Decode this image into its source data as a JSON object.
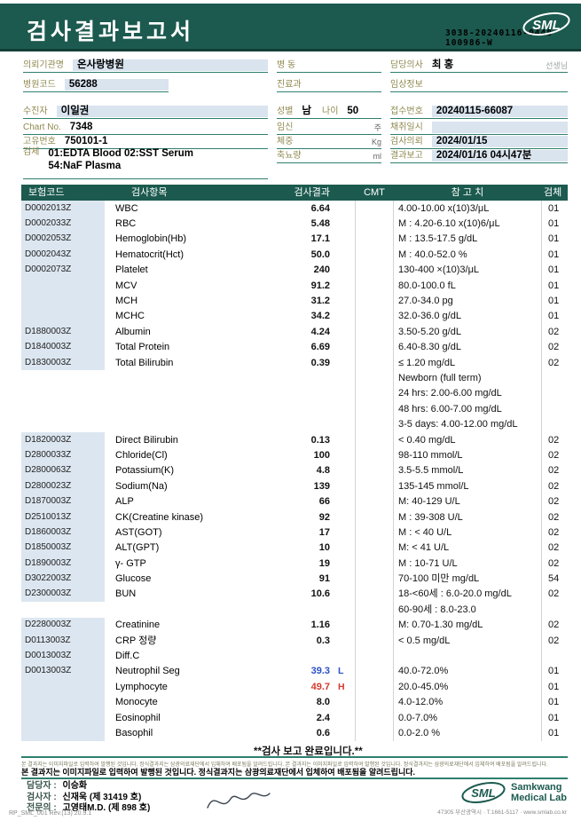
{
  "colors": {
    "teal_banner": "#1c5a4f",
    "teal_line": "#2f7f6d",
    "label_olive": "#8f8950",
    "value_bg": "#d9e4ef",
    "flag_low": "#2b50c8",
    "flag_high": "#d4392e"
  },
  "header": {
    "title": "검사결과보고서",
    "logo_text": "SML",
    "accession_line1": "3038-20240116-0448",
    "accession_line2": "100986-W"
  },
  "info": {
    "requesting_org": {
      "label": "의뢰기관명",
      "value": "온사랑병원"
    },
    "hospital_code": {
      "label": "병원코드",
      "value": "56288"
    },
    "ward": {
      "label": "병 동",
      "value": ""
    },
    "department": {
      "label": "진료과",
      "value": ""
    },
    "doctor": {
      "label": "담당의사",
      "value": "최 홍",
      "suffix": "선생님"
    },
    "clinical_info": {
      "label": "임상정보",
      "value": ""
    },
    "patient": {
      "label": "수진자",
      "value": "이일권"
    },
    "chart_no": {
      "label": "Chart No.",
      "value": "7348"
    },
    "unique_no": {
      "label": "고유번호",
      "value": "750101-1"
    },
    "specimen": {
      "label": "검체",
      "value": "01:EDTA Blood 02:SST Serum",
      "value2": "54:NaF Plasma"
    },
    "sex": {
      "label": "성별",
      "value": "남"
    },
    "age": {
      "label": "나이",
      "value": "50"
    },
    "pregnancy": {
      "label": "임신",
      "unit": "주"
    },
    "weight": {
      "label": "체중",
      "unit": "Kg"
    },
    "urine": {
      "label": "축뇨량",
      "unit": "ml"
    },
    "receipt_no": {
      "label": "접수번호",
      "value": "20240115-66087"
    },
    "collected": {
      "label": "채취일시",
      "value": ""
    },
    "requested": {
      "label": "검사의뢰",
      "value": "2024/01/15"
    },
    "reported": {
      "label": "결과보고",
      "value": "2024/01/16 04시47분"
    }
  },
  "table": {
    "headers": {
      "code": "보험코드",
      "item": "검사항목",
      "result": "검사결과",
      "cmt": "CMT",
      "ref": "참 고 치",
      "spec": "검체"
    },
    "rows": [
      {
        "code": "D0002013Z",
        "item": "WBC",
        "result": "6.64",
        "flag": "",
        "ref": "4.00-10.00 x(10)3/μL",
        "spec": "01"
      },
      {
        "code": "D0002033Z",
        "item": "RBC",
        "result": "5.48",
        "flag": "",
        "ref": "M : 4.20-6.10 x(10)6/μL",
        "spec": "01"
      },
      {
        "code": "D0002053Z",
        "item": "Hemoglobin(Hb)",
        "result": "17.1",
        "flag": "",
        "ref": "M : 13.5-17.5 g/dL",
        "spec": "01"
      },
      {
        "code": "D0002043Z",
        "item": "Hematocrit(Hct)",
        "result": "50.0",
        "flag": "",
        "ref": "M : 40.0-52.0 %",
        "spec": "01"
      },
      {
        "code": "D0002073Z",
        "item": "Platelet",
        "result": "240",
        "flag": "",
        "ref": "130-400 ×(10)3/μL",
        "spec": "01"
      },
      {
        "code": "",
        "item": "MCV",
        "result": "91.2",
        "flag": "",
        "ref": "80.0-100.0 fL",
        "spec": "01"
      },
      {
        "code": "",
        "item": "MCH",
        "result": "31.2",
        "flag": "",
        "ref": "27.0-34.0 pg",
        "spec": "01"
      },
      {
        "code": "",
        "item": "MCHC",
        "result": "34.2",
        "flag": "",
        "ref": "32.0-36.0 g/dL",
        "spec": "01"
      },
      {
        "code": "D1880003Z",
        "item": "Albumin",
        "result": "4.24",
        "flag": "",
        "ref": "3.50-5.20 g/dL",
        "spec": "02"
      },
      {
        "code": "D1840003Z",
        "item": "Total Protein",
        "result": "6.69",
        "flag": "",
        "ref": "6.40-8.30 g/dL",
        "spec": "02"
      },
      {
        "code": "D1830003Z",
        "item": "Total Bilirubin",
        "result": "0.39",
        "flag": "",
        "ref": "≤ 1.20 mg/dL",
        "spec": "02"
      },
      {
        "code": "",
        "item": "",
        "result": "",
        "flag": "",
        "ref": "Newborn (full term)",
        "spec": ""
      },
      {
        "code": "",
        "item": "",
        "result": "",
        "flag": "",
        "ref": "24 hrs: 2.00-6.00 mg/dL",
        "spec": ""
      },
      {
        "code": "",
        "item": "",
        "result": "",
        "flag": "",
        "ref": "48 hrs: 6.00-7.00 mg/dL",
        "spec": ""
      },
      {
        "code": "",
        "item": "",
        "result": "",
        "flag": "",
        "ref": "3-5 days: 4.00-12.00 mg/dL",
        "spec": ""
      },
      {
        "code": "D1820003Z",
        "item": "Direct Bilirubin",
        "result": "0.13",
        "flag": "",
        "ref": "< 0.40 mg/dL",
        "spec": "02"
      },
      {
        "code": "D2800033Z",
        "item": "Chloride(Cl)",
        "result": "100",
        "flag": "",
        "ref": "98-110 mmol/L",
        "spec": "02"
      },
      {
        "code": "D2800063Z",
        "item": "Potassium(K)",
        "result": "4.8",
        "flag": "",
        "ref": "3.5-5.5 mmol/L",
        "spec": "02"
      },
      {
        "code": "D2800023Z",
        "item": "Sodium(Na)",
        "result": "139",
        "flag": "",
        "ref": "135-145 mmol/L",
        "spec": "02"
      },
      {
        "code": "D1870003Z",
        "item": "ALP",
        "result": "66",
        "flag": "",
        "ref": "M: 40-129 U/L",
        "spec": "02"
      },
      {
        "code": "D2510013Z",
        "item": "CK(Creatine kinase)",
        "result": "92",
        "flag": "",
        "ref": "M : 39-308 U/L",
        "spec": "02"
      },
      {
        "code": "D1860003Z",
        "item": "AST(GOT)",
        "result": "17",
        "flag": "",
        "ref": "M : < 40 U/L",
        "spec": "02"
      },
      {
        "code": "D1850003Z",
        "item": "ALT(GPT)",
        "result": "10",
        "flag": "",
        "ref": "M: < 41 U/L",
        "spec": "02"
      },
      {
        "code": "D1890003Z",
        "item": "γ- GTP",
        "result": "19",
        "flag": "",
        "ref": "M : 10-71 U/L",
        "spec": "02"
      },
      {
        "code": "D3022003Z",
        "item": "Glucose",
        "result": "91",
        "flag": "",
        "ref": "70-100 미만 mg/dL",
        "spec": "54"
      },
      {
        "code": "D2300003Z",
        "item": "BUN",
        "result": "10.6",
        "flag": "",
        "ref": "18-<60세 : 6.0-20.0 mg/dL",
        "spec": "02"
      },
      {
        "code": "",
        "item": "",
        "result": "",
        "flag": "",
        "ref": "60-90세 : 8.0-23.0",
        "spec": ""
      },
      {
        "code": "D2280003Z",
        "item": "Creatinine",
        "result": "1.16",
        "flag": "",
        "ref": "M: 0.70-1.30 mg/dL",
        "spec": "02"
      },
      {
        "code": "D0113003Z",
        "item": "CRP 정량",
        "result": "0.3",
        "flag": "",
        "ref": "< 0.5 mg/dL",
        "spec": "02"
      },
      {
        "code": "D0013003Z",
        "item": "Diff.C",
        "result": "",
        "flag": "",
        "ref": "",
        "spec": ""
      },
      {
        "code": "D0013003Z",
        "item": "Neutrophil Seg",
        "result": "39.3",
        "flag": "L",
        "ref": "40.0-72.0%",
        "spec": "01"
      },
      {
        "code": "",
        "item": "Lymphocyte",
        "result": "49.7",
        "flag": "H",
        "ref": "20.0-45.0%",
        "spec": "01"
      },
      {
        "code": "",
        "item": "Monocyte",
        "result": "8.0",
        "flag": "",
        "ref": "4.0-12.0%",
        "spec": "01"
      },
      {
        "code": "",
        "item": "Eosinophil",
        "result": "2.4",
        "flag": "",
        "ref": "0.0-7.0%",
        "spec": "01"
      },
      {
        "code": "",
        "item": "Basophil",
        "result": "0.6",
        "flag": "",
        "ref": "0.0-2.0 %",
        "spec": "01"
      }
    ],
    "complete_message": "**검사  보고  완료입니다.**"
  },
  "footer": {
    "tiny_line": "본 결과지는 이미지파일로 입력하여 발행된 것입니다. 정식결과지는 삼광의료재단에서 입체하여 배포됨을 알려드립니다. 본 결과지는 이미지파일로 입력하여 발행된 것입니다. 정식결과지는 삼광의료재단에서 입체하여 배포됨을 알려드립니다.",
    "disclaimer": "본 결과지는 이미지파일로 입력하여 발행된 것입니다. 정식결과지는 삼광의료재단에서 입체하여 배포됨을 알려드립니다.",
    "staff": [
      {
        "label": "담당자 :",
        "value": "이승화"
      },
      {
        "label": "검사자 :",
        "value": "신재욱 (제 31419 호)"
      },
      {
        "label": "전문의 :",
        "value": "고영태M.D. (제 898 호)"
      }
    ],
    "logo_text": "SML",
    "lab_name_line1": "Samkwang",
    "lab_name_line2": "Medical Lab",
    "address": "47305 부산광역시 · T.1661-5117 · www.smlab.co.kr",
    "doc_code": "RP_SML_001 Rev.(13) 20.9.1"
  }
}
